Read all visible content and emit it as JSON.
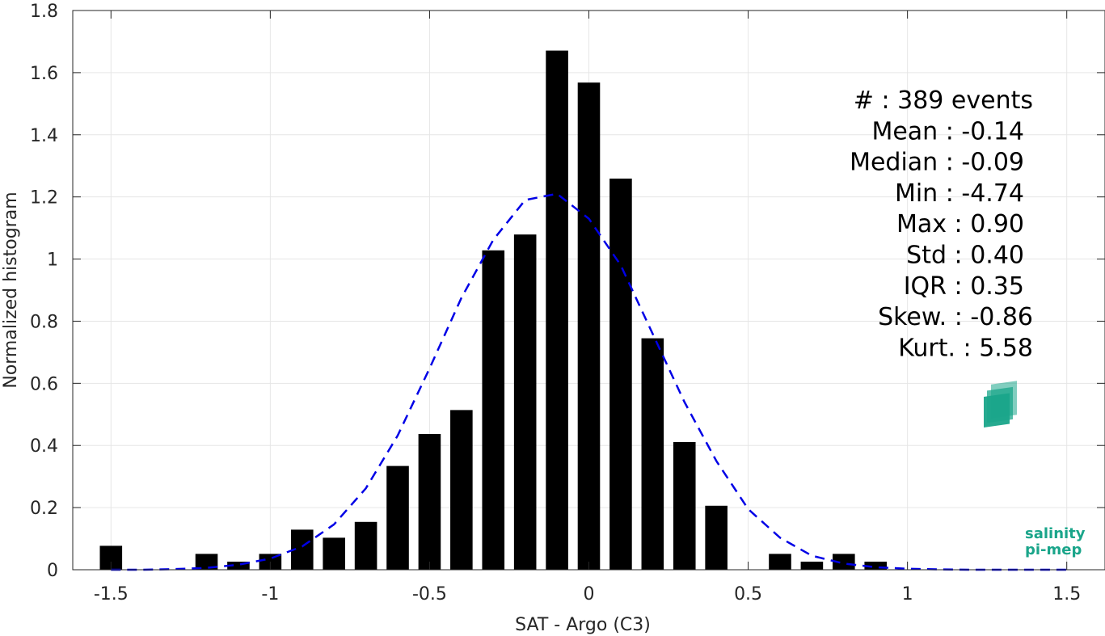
{
  "chart_data": {
    "type": "bar",
    "xlabel": "SAT - Argo (C3)",
    "ylabel": "Normalized histogram",
    "xlim": [
      -1.62,
      1.62
    ],
    "ylim": [
      0,
      1.8
    ],
    "grid": true,
    "x_ticks": [
      -1.5,
      -1,
      -0.5,
      0,
      0.5,
      1,
      1.5
    ],
    "x_tick_labels": [
      "-1.5",
      "-1",
      "-0.5",
      "0",
      "0.5",
      "1",
      "1.5"
    ],
    "y_ticks": [
      0,
      0.2,
      0.4,
      0.6,
      0.8,
      1,
      1.2,
      1.4,
      1.6,
      1.8
    ],
    "y_tick_labels": [
      "0",
      "0.2",
      "0.4",
      "0.6",
      "0.8",
      "1",
      "1.2",
      "1.4",
      "1.6",
      "1.8"
    ],
    "bar_color": "#000000",
    "bar_width": 0.07,
    "bars": [
      {
        "x": -1.5,
        "y": 0.077
      },
      {
        "x": -1.2,
        "y": 0.051
      },
      {
        "x": -1.1,
        "y": 0.026
      },
      {
        "x": -1.0,
        "y": 0.051
      },
      {
        "x": -0.9,
        "y": 0.129
      },
      {
        "x": -0.8,
        "y": 0.103
      },
      {
        "x": -0.7,
        "y": 0.154
      },
      {
        "x": -0.6,
        "y": 0.334
      },
      {
        "x": -0.5,
        "y": 0.437
      },
      {
        "x": -0.4,
        "y": 0.514
      },
      {
        "x": -0.3,
        "y": 1.028
      },
      {
        "x": -0.2,
        "y": 1.079
      },
      {
        "x": -0.1,
        "y": 1.671
      },
      {
        "x": 0.0,
        "y": 1.568
      },
      {
        "x": 0.1,
        "y": 1.259
      },
      {
        "x": 0.2,
        "y": 0.745
      },
      {
        "x": 0.3,
        "y": 0.411
      },
      {
        "x": 0.4,
        "y": 0.206
      },
      {
        "x": 0.6,
        "y": 0.051
      },
      {
        "x": 0.7,
        "y": 0.026
      },
      {
        "x": 0.8,
        "y": 0.051
      },
      {
        "x": 0.9,
        "y": 0.026
      }
    ],
    "fit_curve": {
      "color": "#0000e6",
      "style": "dashed",
      "points": [
        [
          -1.5,
          0.0
        ],
        [
          -1.4,
          0.0
        ],
        [
          -1.3,
          0.002
        ],
        [
          -1.2,
          0.006
        ],
        [
          -1.1,
          0.016
        ],
        [
          -1.0,
          0.036
        ],
        [
          -0.9,
          0.075
        ],
        [
          -0.8,
          0.146
        ],
        [
          -0.7,
          0.262
        ],
        [
          -0.6,
          0.432
        ],
        [
          -0.5,
          0.648
        ],
        [
          -0.4,
          0.875
        ],
        [
          -0.3,
          1.062
        ],
        [
          -0.2,
          1.19
        ],
        [
          -0.1,
          1.21
        ],
        [
          0.0,
          1.13
        ],
        [
          0.1,
          0.98
        ],
        [
          0.2,
          0.76
        ],
        [
          0.3,
          0.54
        ],
        [
          0.4,
          0.35
        ],
        [
          0.5,
          0.195
        ],
        [
          0.6,
          0.103
        ],
        [
          0.7,
          0.045
        ],
        [
          0.8,
          0.02
        ],
        [
          0.9,
          0.008
        ],
        [
          1.0,
          0.003
        ],
        [
          1.1,
          0.001
        ],
        [
          1.2,
          0.0
        ],
        [
          1.3,
          0.0
        ],
        [
          1.4,
          0.0
        ],
        [
          1.5,
          0.0
        ]
      ]
    },
    "annotations": [
      "#  : 389 events",
      "Mean : -0.14",
      "Median : -0.09",
      "Min : -4.74",
      "Max : 0.90",
      "Std : 0.40",
      "IQR : 0.35",
      "Skew. : -0.86",
      "Kurt. : 5.58"
    ]
  },
  "logo": {
    "line1": "salinity",
    "line2": "pi-mep",
    "color": "#1aa58a"
  }
}
